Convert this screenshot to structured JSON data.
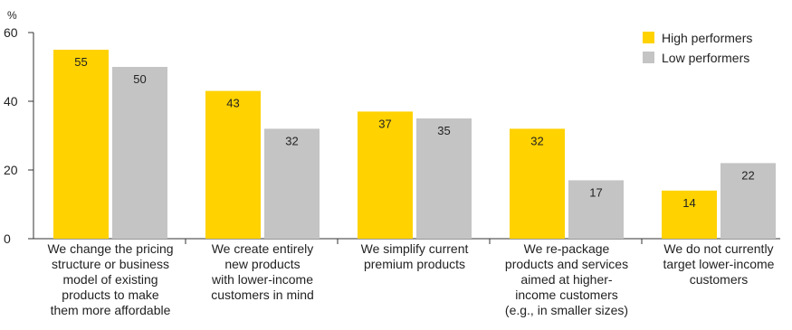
{
  "chart_data": {
    "type": "bar",
    "ylabel": "%",
    "ylim": [
      0,
      60
    ],
    "yticks": [
      0,
      20,
      40,
      60
    ],
    "grid": false,
    "legend_position": "top-right",
    "categories": [
      [
        "We change the pricing",
        "structure or business",
        "model of existing",
        "products to make",
        "them more affordable"
      ],
      [
        "We create entirely",
        "new products",
        "with lower-income",
        "customers in mind"
      ],
      [
        "We simplify current",
        "premium products"
      ],
      [
        "We re-package",
        "products and services",
        "aimed at higher-",
        "income customers",
        "(e.g., in smaller sizes)"
      ],
      [
        "We do not currently",
        "target lower-income",
        "customers"
      ]
    ],
    "series": [
      {
        "name": "High performers",
        "color": "#FFD200",
        "values": [
          55,
          43,
          37,
          32,
          14
        ]
      },
      {
        "name": "Low performers",
        "color": "#C4C4C4",
        "values": [
          50,
          32,
          35,
          17,
          22
        ]
      }
    ]
  }
}
